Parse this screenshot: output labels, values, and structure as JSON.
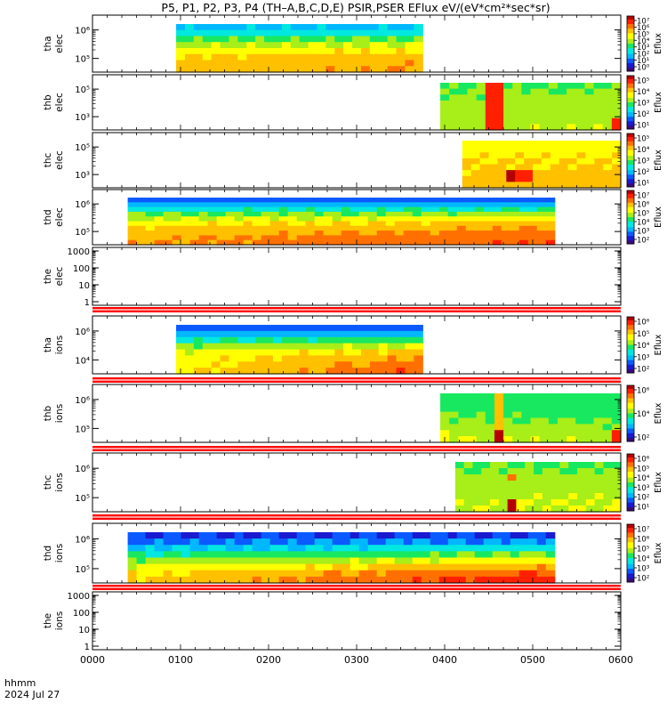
{
  "title": "P5, P1, P2, P3, P4 (TH–A,B,C,D,E) PSIR,PSER EFlux eV/(eV*cm²*sec*sr)",
  "colors": {
    "red_bar": "#ff0000",
    "white_bar": "#ffffff",
    "colormap": [
      "#3a0a7a",
      "#1a1ad0",
      "#0a5aff",
      "#00b8ff",
      "#00e8e0",
      "#18e860",
      "#a8ee18",
      "#ffff00",
      "#ffc000",
      "#ff7000",
      "#ff2000",
      "#b40000"
    ]
  },
  "x_axis": {
    "ticks": [
      {
        "t": 0,
        "label": "0000"
      },
      {
        "t": 1,
        "label": "0100"
      },
      {
        "t": 2,
        "label": "0200"
      },
      {
        "t": 3,
        "label": "0300"
      },
      {
        "t": 4,
        "label": "0400"
      },
      {
        "t": 5,
        "label": "0500"
      },
      {
        "t": 6,
        "label": "0600"
      }
    ],
    "format_label": "hhmm",
    "date_label": "2024 Jul 27",
    "range": [
      0,
      6
    ]
  },
  "chart_data": {
    "type": "heatmap",
    "title": "P5, P1, P2, P3, P4 (TH–A,B,C,D,E) PSIR,PSER EFlux eV/(eV*cm²*sec*sr)",
    "x_units": "hours UT, 2024 Jul 27",
    "panels": [
      {
        "id": "tha-elec",
        "ylabel_1": "tha",
        "ylabel_2": "elec",
        "ytick_labels": [
          "10⁶",
          "10⁵"
        ],
        "data_x_range": [
          0.95,
          3.75
        ],
        "rows_high_to_low": [
          3.3,
          4.2,
          5.3,
          6.3,
          7.1,
          7.6,
          7.9,
          8.0
        ],
        "time_trend": 0.5,
        "colorbar": {
          "labels": [
            "10⁷",
            "10⁶",
            "10⁵",
            "10⁴",
            "10³",
            "10²",
            "10¹",
            "10⁰"
          ],
          "title": "Eflux"
        }
      },
      {
        "id": "thb-elec",
        "ylabel_1": "thb",
        "ylabel_2": "elec",
        "ytick_labels": [
          "10⁵",
          "10³"
        ],
        "data_x_range": [
          3.95,
          6.0
        ],
        "rows_high_to_low": [
          5.4,
          5.6,
          5.7,
          5.8,
          5.8,
          5.9,
          6.0,
          6.1
        ],
        "time_trend": 0.3,
        "features": [
          {
            "x": [
              4.5,
              4.65
            ],
            "value": 9.8
          },
          {
            "x": [
              5.85,
              6.0
            ],
            "value": 9.5,
            "rows": [
              6,
              7
            ]
          }
        ],
        "colorbar": {
          "labels": [
            "10⁵",
            "10⁴",
            "10³",
            "10²",
            "10¹"
          ],
          "title": "Eflux"
        }
      },
      {
        "id": "thc-elec",
        "ylabel_1": "thc",
        "ylabel_2": "elec",
        "ytick_labels": [
          "10⁵",
          "10³"
        ],
        "data_x_range": [
          4.2,
          6.0
        ],
        "rows_high_to_low": [
          6.8,
          7.0,
          7.3,
          7.5,
          7.6,
          7.7,
          7.9,
          8.0
        ],
        "time_trend": 0.1,
        "features": [
          {
            "x": [
              4.7,
              4.85
            ],
            "value": 10.8,
            "rows": [
              5,
              6
            ]
          },
          {
            "x": [
              4.85,
              5.0
            ],
            "value": 10.2,
            "rows": [
              5,
              6
            ]
          }
        ],
        "colorbar": {
          "labels": [
            "10⁵",
            "10⁴",
            "10³",
            "10²",
            "10¹"
          ],
          "title": "Eflux"
        }
      },
      {
        "id": "thd-elec",
        "ylabel_1": "thd",
        "ylabel_2": "elec",
        "ytick_labels": [
          "10⁶",
          "10⁵"
        ],
        "data_x_range": [
          0.4,
          5.25
        ],
        "rows_high_to_low": [
          2.2,
          3.0,
          4.2,
          5.4,
          6.4,
          7.2,
          7.7,
          8.0,
          8.2,
          8.3
        ],
        "time_trend": 1.2,
        "colorbar": {
          "labels": [
            "10⁷",
            "10⁶",
            "10⁵",
            "10⁴",
            "10³",
            "10²"
          ],
          "title": "Eflux"
        }
      },
      {
        "id": "the-elec",
        "ylabel_1": "the",
        "ylabel_2": "elec",
        "ytick_labels": [
          "1000",
          "100",
          "10",
          "1"
        ],
        "empty": true
      },
      {
        "id": "tha-ions",
        "ylabel_1": "tha",
        "ylabel_2": "ions",
        "ytick_labels": [
          "10⁶",
          "10⁴"
        ],
        "data_x_range": [
          0.95,
          3.75
        ],
        "rows_high_to_low": [
          2.2,
          3.0,
          4.3,
          5.6,
          6.6,
          7.0,
          7.2,
          7.3
        ],
        "time_trend": 2.2,
        "colorbar": {
          "labels": [
            "10⁶",
            "10⁵",
            "10⁴",
            "10³",
            "10²"
          ],
          "title": "Eflux"
        }
      },
      {
        "id": "thb-ions",
        "ylabel_1": "thb",
        "ylabel_2": "ions",
        "ytick_labels": [
          "10⁶",
          "10⁵"
        ],
        "data_x_range": [
          3.95,
          6.0
        ],
        "rows_high_to_low": [
          5.0,
          4.8,
          5.1,
          5.4,
          5.7,
          6.0,
          6.3,
          6.6
        ],
        "time_trend": -0.4,
        "features": [
          {
            "x": [
              4.55,
              4.65
            ],
            "value": 8.0
          },
          {
            "x": [
              4.55,
              4.65
            ],
            "value": 10.8,
            "rows": [
              6,
              7
            ]
          },
          {
            "x": [
              5.9,
              6.0
            ],
            "value": 10.0,
            "rows": [
              6,
              7
            ]
          }
        ],
        "colorbar": {
          "labels": [
            "10⁶",
            "10⁴",
            "10²"
          ],
          "title": "Eflux"
        }
      },
      {
        "id": "thc-ions",
        "ylabel_1": "thc",
        "ylabel_2": "ions",
        "ytick_labels": [
          "10⁶",
          "10⁵"
        ],
        "data_x_range": [
          4.12,
          6.0
        ],
        "rows_high_to_low": [
          5.4,
          5.6,
          5.8,
          6.0,
          6.1,
          6.2,
          6.3,
          6.4
        ],
        "time_trend": 0.2,
        "features": [
          {
            "x": [
              4.7,
              4.85
            ],
            "value": 11.2,
            "rows": [
              6,
              7
            ]
          },
          {
            "x": [
              4.7,
              4.85
            ],
            "value": 9.2,
            "rows": [
              2,
              2
            ]
          }
        ],
        "colorbar": {
          "labels": [
            "10⁶",
            "10⁵",
            "10⁴",
            "10³",
            "10²",
            "10¹"
          ],
          "title": "Eflux"
        }
      },
      {
        "id": "thd-ions",
        "ylabel_1": "thd",
        "ylabel_2": "ions",
        "ytick_labels": [
          "10⁶",
          "10⁵"
        ],
        "data_x_range": [
          0.4,
          5.25
        ],
        "rows_high_to_low": [
          1.5,
          2.3,
          3.3,
          4.5,
          5.6,
          6.6,
          7.3,
          7.6
        ],
        "time_trend": 2.6,
        "colorbar": {
          "labels": [
            "10⁷",
            "10⁶",
            "10⁵",
            "10⁴",
            "10³",
            "10²"
          ],
          "title": "Eflux"
        }
      },
      {
        "id": "the-ions",
        "ylabel_1": "the",
        "ylabel_2": "ions",
        "ytick_labels": [
          "1000",
          "100",
          "10",
          "1"
        ],
        "empty": true
      }
    ]
  }
}
